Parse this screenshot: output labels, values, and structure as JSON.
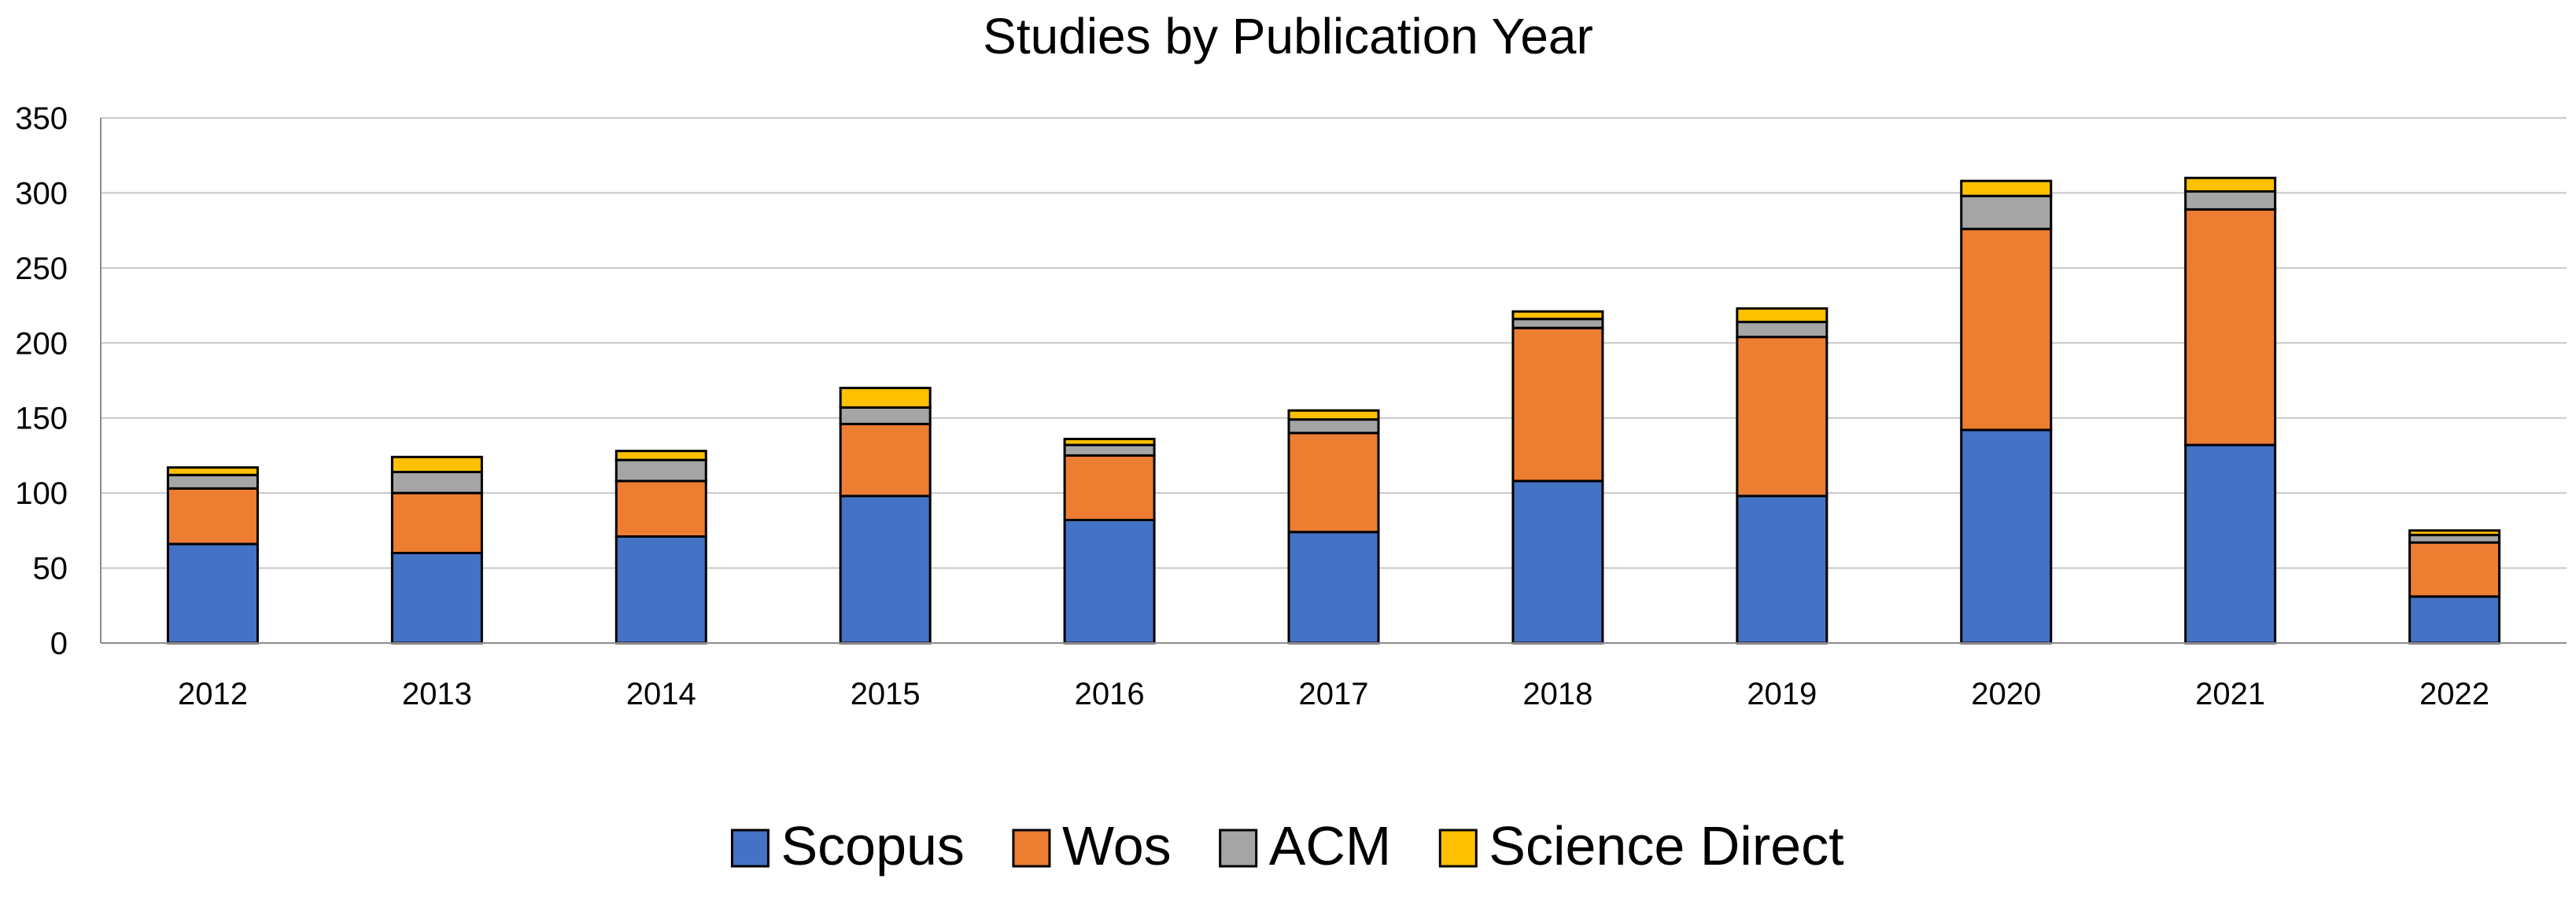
{
  "chart_data": {
    "type": "bar",
    "stacked": true,
    "title": "Studies by Publication Year",
    "xlabel": "",
    "ylabel": "",
    "ylim": [
      0,
      350
    ],
    "yticks": [
      0,
      50,
      100,
      150,
      200,
      250,
      300,
      350
    ],
    "grid": true,
    "legend_position": "bottom",
    "categories": [
      "2012",
      "2013",
      "2014",
      "2015",
      "2016",
      "2017",
      "2018",
      "2019",
      "2020",
      "2021",
      "2022"
    ],
    "series": [
      {
        "name": "Scopus",
        "color": "#4472C4",
        "values": [
          66,
          60,
          71,
          98,
          82,
          74,
          108,
          98,
          142,
          132,
          31
        ]
      },
      {
        "name": "Wos",
        "color": "#ED7D31",
        "values": [
          37,
          40,
          37,
          48,
          43,
          66,
          102,
          106,
          134,
          157,
          36
        ]
      },
      {
        "name": "ACM",
        "color": "#A5A5A5",
        "values": [
          9,
          14,
          14,
          11,
          7,
          9,
          6,
          10,
          22,
          12,
          5
        ]
      },
      {
        "name": "Science Direct",
        "color": "#FFC000",
        "values": [
          5,
          10,
          6,
          13,
          4,
          6,
          5,
          9,
          10,
          9,
          3
        ]
      }
    ]
  }
}
